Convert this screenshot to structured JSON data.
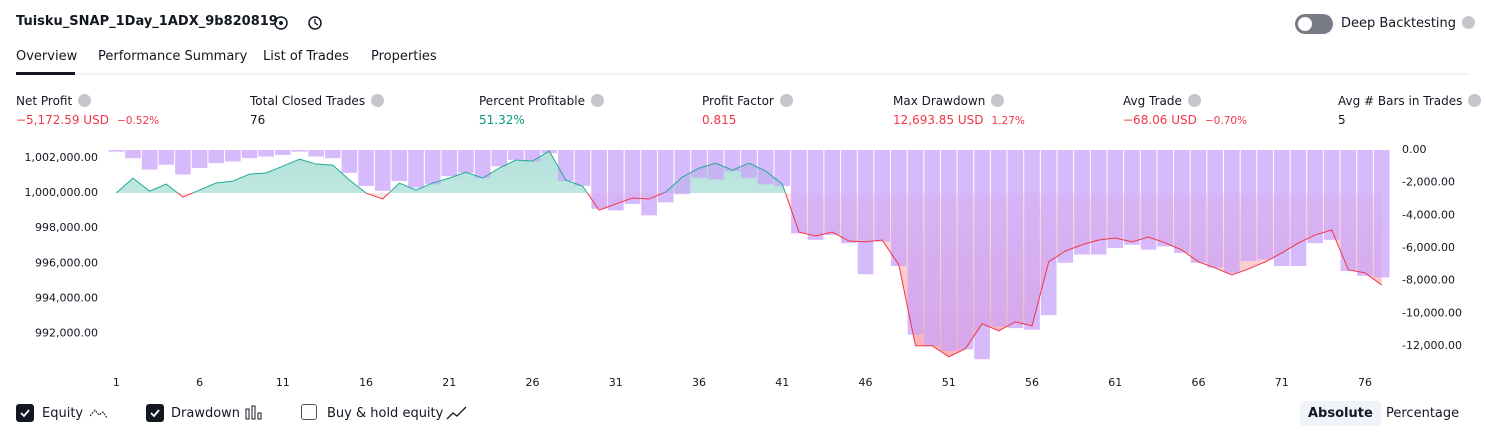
{
  "header": {
    "title": "Tuisku_SNAP_1Day_1ADX_9b820819",
    "deep_backtesting": "Deep Backtesting"
  },
  "tabs": [
    "Overview",
    "Performance Summary",
    "List of Trades",
    "Properties"
  ],
  "metrics": [
    {
      "label": "Net Profit",
      "value": "−5,172.59 USD",
      "extra": "−0.52%",
      "color": "#f23645"
    },
    {
      "label": "Total Closed Trades",
      "value": "76",
      "color": "#131722"
    },
    {
      "label": "Percent Profitable",
      "value": "51.32%",
      "color": "#089981"
    },
    {
      "label": "Profit Factor",
      "value": "0.815",
      "color": "#f23645"
    },
    {
      "label": "Max Drawdown",
      "value": "12,693.85 USD",
      "extra": "1.27%",
      "color": "#f23645"
    },
    {
      "label": "Avg Trade",
      "value": "−68.06 USD",
      "extra": "−0.70%",
      "color": "#f23645"
    },
    {
      "label": "Avg # Bars in Trades",
      "value": "5",
      "color": "#131722"
    }
  ],
  "chart_data": {
    "type": "equity-drawdown",
    "x": [
      1,
      2,
      3,
      4,
      5,
      6,
      7,
      8,
      9,
      10,
      11,
      12,
      13,
      14,
      15,
      16,
      17,
      18,
      19,
      20,
      21,
      22,
      23,
      24,
      25,
      26,
      27,
      28,
      29,
      30,
      31,
      32,
      33,
      34,
      35,
      36,
      37,
      38,
      39,
      40,
      41,
      42,
      43,
      44,
      45,
      46,
      47,
      48,
      49,
      50,
      51,
      52,
      53,
      54,
      55,
      56,
      57,
      58,
      59,
      60,
      61,
      62,
      63,
      64,
      65,
      66,
      67,
      68,
      69,
      70,
      71,
      72,
      73,
      74,
      75,
      76,
      77
    ],
    "xlim": [
      0.5,
      77.5
    ],
    "xticks": [
      1,
      6,
      11,
      16,
      21,
      26,
      31,
      36,
      41,
      46,
      51,
      56,
      61,
      66,
      71,
      76
    ],
    "ylim": [
      990500,
      1002450
    ],
    "yticks": [
      {
        "value": 992000,
        "label": "992,000.00"
      },
      {
        "value": 994000,
        "label": "994,000.00"
      },
      {
        "value": 996000,
        "label": "996,000.00"
      },
      {
        "value": 998000,
        "label": "998,000.00"
      },
      {
        "value": 1000000,
        "label": "1,000,000.00"
      },
      {
        "value": 1002000,
        "label": "1,002,000.00"
      }
    ],
    "y2lim": [
      -12850,
      0
    ],
    "y2ticks": [
      {
        "value": 0,
        "label": "0.00"
      },
      {
        "value": -2000,
        "label": "-2,000.00"
      },
      {
        "value": -4000,
        "label": "-4,000.00"
      },
      {
        "value": -6000,
        "label": "-6,000.00"
      },
      {
        "value": -8000,
        "label": "-8,000.00"
      },
      {
        "value": -10000,
        "label": "-10,000.00"
      },
      {
        "value": -12000,
        "label": "-12,000.00"
      }
    ],
    "baseline": 1000000,
    "series": [
      {
        "name": "Equity",
        "color": "#22ab94",
        "negative_color": "#f23645",
        "values": [
          1000000,
          1000850,
          1000110,
          1000510,
          999770,
          1000170,
          1000570,
          1000680,
          1001080,
          1001140,
          1001530,
          1001930,
          1001650,
          1001590,
          1000740,
          1000000,
          999660,
          1000570,
          1000170,
          1000570,
          1000850,
          1001190,
          1000850,
          1001420,
          1001880,
          1001820,
          1002390,
          1000740,
          1000400,
          999030,
          999380,
          999720,
          999660,
          1000060,
          1000910,
          1001420,
          1001700,
          1001310,
          1001700,
          1001250,
          1000510,
          997780,
          997560,
          997780,
          997270,
          997220,
          997330,
          995910,
          991310,
          991310,
          990680,
          991140,
          992560,
          992160,
          992670,
          992440,
          996080,
          996700,
          997050,
          997330,
          997440,
          997220,
          997500,
          997160,
          996760,
          996080,
          995740,
          995340,
          995680,
          996080,
          996590,
          997160,
          997610,
          997900,
          995630,
          995460,
          994770
        ]
      },
      {
        "name": "Drawdown",
        "color": "#c9a3fa",
        "axis": "y2",
        "values": [
          -100,
          -500,
          -1200,
          -900,
          -1500,
          -1100,
          -800,
          -700,
          -500,
          -400,
          -300,
          -100,
          -400,
          -500,
          -1400,
          -2200,
          -2500,
          -1900,
          -2300,
          -2100,
          -1600,
          -1400,
          -1700,
          -1000,
          -600,
          -700,
          -200,
          -1900,
          -2200,
          -3600,
          -3700,
          -3300,
          -4000,
          -3200,
          -2700,
          -1700,
          -1800,
          -1300,
          -1700,
          -2100,
          -2200,
          -5100,
          -5500,
          -5200,
          -5700,
          -7600,
          -5600,
          -7100,
          -11300,
          -12000,
          -12300,
          -12200,
          -12800,
          -10800,
          -10900,
          -11000,
          -10100,
          -6900,
          -6400,
          -6400,
          -6000,
          -5800,
          -6100,
          -5900,
          -6300,
          -6900,
          -7200,
          -7500,
          -6800,
          -6700,
          -7100,
          -7100,
          -5700,
          -5500,
          -7400,
          -7700,
          -7800
        ]
      }
    ],
    "buy_hold_label": "Buy & hold equity",
    "modes": [
      "Absolute",
      "Percentage"
    ]
  }
}
